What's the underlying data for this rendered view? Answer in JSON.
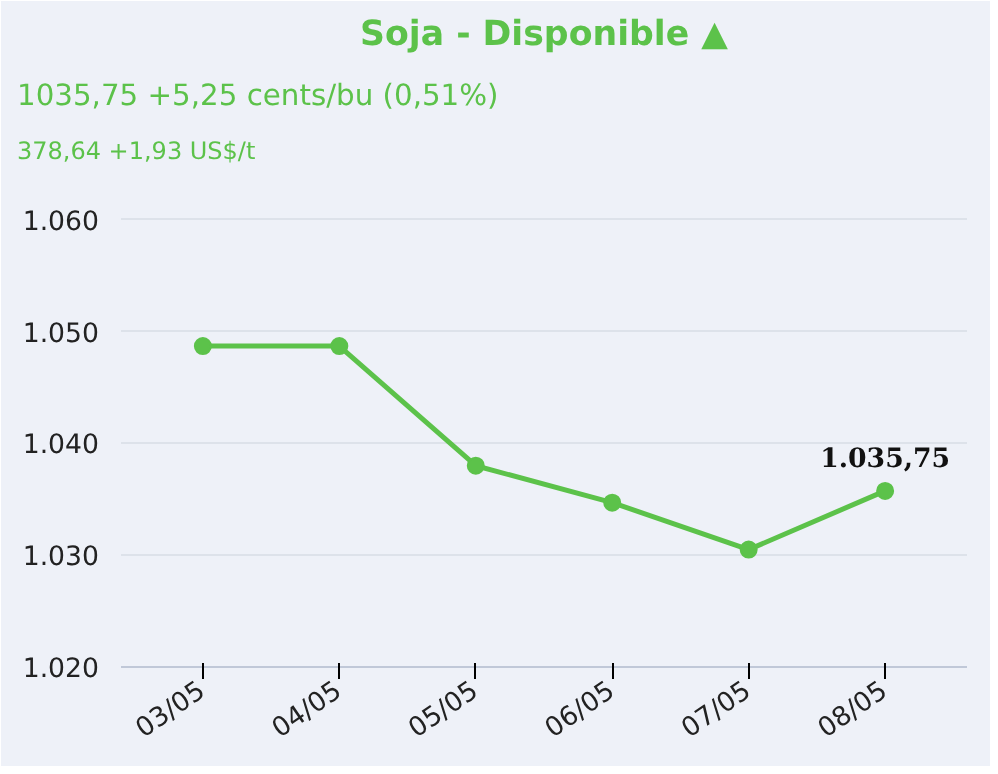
{
  "chart_data": {
    "type": "line",
    "title": "Soja - Disponible ▲",
    "subtitle": "1035,75 +5,25 cents/bu (0,51%)",
    "annotations": [
      "378,64 +1,93 US$/t"
    ],
    "categories": [
      "03/05",
      "04/05",
      "05/05",
      "06/05",
      "07/05",
      "08/05"
    ],
    "series": [
      {
        "color": "#5cc24a",
        "values": [
          1048.7,
          1048.7,
          1038.0,
          1034.7,
          1030.5,
          1035.75
        ],
        "value_labels": [
          null,
          null,
          null,
          null,
          null,
          "1.035,75"
        ]
      }
    ],
    "ylim": [
      1020,
      1064
    ],
    "yticks": [
      {
        "value": 1020,
        "label": "1.020"
      },
      {
        "value": 1030,
        "label": "1.030"
      },
      {
        "value": 1040,
        "label": "1.040"
      },
      {
        "value": 1050,
        "label": "1.050"
      },
      {
        "value": 1060,
        "label": "1.060"
      }
    ],
    "grid": "y",
    "marker": "circle",
    "line_style": "solid"
  }
}
